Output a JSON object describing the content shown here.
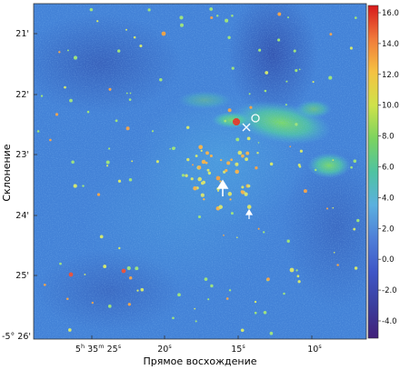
{
  "axes": {
    "ylabel": "Склонение",
    "xlabel": "Прямое восхождение",
    "y_ticks": [
      "21'",
      "22'",
      "23'",
      "24'",
      "25'",
      "-5° 26'"
    ],
    "x_ticks": [
      {
        "h": "5",
        "hs": "h",
        "m": "35",
        "ms": "m",
        "s": "25",
        "ss": "s"
      },
      {
        "s": "20",
        "ss": "s"
      },
      {
        "s": "15",
        "ss": "s"
      },
      {
        "s": "10",
        "ss": "s"
      }
    ]
  },
  "colorbar": {
    "ticks": [
      "16.0",
      "14.0",
      "12.0",
      "10.0",
      "8.0",
      "6.0",
      "4.0",
      "2.0",
      "0.0",
      "-2.0",
      "-4.0"
    ],
    "colors": [
      "#d7191c",
      "#f07a3a",
      "#f5c242",
      "#cfe24a",
      "#7cd35f",
      "#4fc3a1",
      "#5ab0df",
      "#4f7fd8",
      "#3f57c7",
      "#3b3f9e",
      "#42207a"
    ]
  }
}
